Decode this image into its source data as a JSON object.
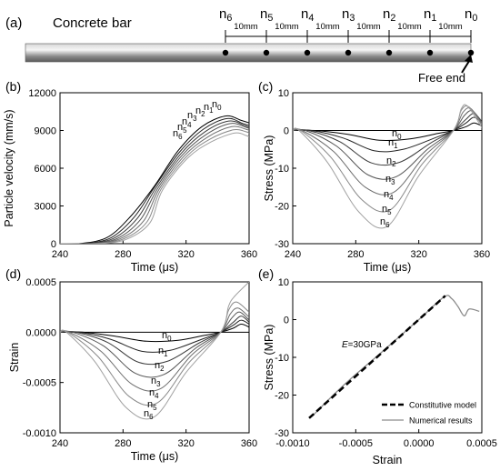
{
  "figure": {
    "panel_a": {
      "tag": "(a)",
      "title": "Concrete bar",
      "node_labels": [
        "n6",
        "n5",
        "n4",
        "n3",
        "n2",
        "n1",
        "n0"
      ],
      "spacing_label": "10mm",
      "free_end_label": "Free end"
    }
  },
  "chart_data": [
    {
      "panel": "(b)",
      "type": "line",
      "xlabel": "Time (μs)",
      "ylabel": "Particle velocity (mm/s)",
      "xlim": [
        240,
        360
      ],
      "ylim": [
        0,
        12000
      ],
      "xticks": [
        240,
        280,
        320,
        360
      ],
      "yticks": [
        0,
        3000,
        6000,
        9000,
        12000
      ],
      "series_labels": [
        "n0",
        "n1",
        "n2",
        "n3",
        "n4",
        "n5",
        "n6"
      ],
      "series": [
        {
          "name": "n0",
          "values": [
            [
              252,
              0
            ],
            [
              270,
              500
            ],
            [
              285,
              2200
            ],
            [
              300,
              4600
            ],
            [
              315,
              7400
            ],
            [
              330,
              9300
            ],
            [
              345,
              10150
            ],
            [
              355,
              9800
            ],
            [
              360,
              9600
            ]
          ]
        },
        {
          "name": "n1",
          "values": [
            [
              254,
              0
            ],
            [
              272,
              450
            ],
            [
              287,
              2100
            ],
            [
              300,
              4500
            ],
            [
              316,
              7300
            ],
            [
              331,
              9100
            ],
            [
              346,
              9950
            ],
            [
              356,
              9550
            ],
            [
              360,
              9400
            ]
          ]
        },
        {
          "name": "n2",
          "values": [
            [
              256,
              0
            ],
            [
              274,
              420
            ],
            [
              289,
              2000
            ],
            [
              301,
              4450
            ],
            [
              317,
              7200
            ],
            [
              332,
              8900
            ],
            [
              347,
              9750
            ],
            [
              357,
              9400
            ],
            [
              360,
              9250
            ]
          ]
        },
        {
          "name": "n3",
          "values": [
            [
              258,
              0
            ],
            [
              276,
              400
            ],
            [
              291,
              1900
            ],
            [
              302,
              4400
            ],
            [
              318,
              7100
            ],
            [
              333,
              8700
            ],
            [
              348,
              9550
            ],
            [
              358,
              9250
            ],
            [
              360,
              9150
            ]
          ]
        },
        {
          "name": "n4",
          "values": [
            [
              260,
              0
            ],
            [
              278,
              380
            ],
            [
              293,
              1800
            ],
            [
              303,
              4350
            ],
            [
              319,
              7000
            ],
            [
              334,
              8500
            ],
            [
              349,
              9300
            ],
            [
              358,
              9100
            ],
            [
              360,
              9000
            ]
          ]
        },
        {
          "name": "n5",
          "values": [
            [
              262,
              0
            ],
            [
              280,
              360
            ],
            [
              295,
              1700
            ],
            [
              304,
              4300
            ],
            [
              320,
              6900
            ],
            [
              335,
              8300
            ],
            [
              350,
              9050
            ],
            [
              358,
              8900
            ],
            [
              360,
              8800
            ]
          ]
        },
        {
          "name": "n6",
          "values": [
            [
              264,
              0
            ],
            [
              282,
              340
            ],
            [
              297,
              1650
            ],
            [
              305,
              4250
            ],
            [
              321,
              6800
            ],
            [
              336,
              8100
            ],
            [
              351,
              8800
            ],
            [
              358,
              8600
            ],
            [
              360,
              8500
            ]
          ]
        }
      ]
    },
    {
      "panel": "(c)",
      "type": "line",
      "xlabel": "Time (μs)",
      "ylabel": "Stress (MPa)",
      "xlim": [
        240,
        360
      ],
      "ylim": [
        -30,
        10
      ],
      "xticks": [
        240,
        280,
        320,
        360
      ],
      "yticks": [
        -30,
        -20,
        -10,
        0,
        10
      ],
      "series_labels": [
        "n0",
        "n1",
        "n2",
        "n3",
        "n4",
        "n5",
        "n6"
      ],
      "series": [
        {
          "name": "n0",
          "values": [
            [
              254,
              0
            ],
            [
              275,
              -1.0
            ],
            [
              295,
              -2.6
            ],
            [
              315,
              -2.2
            ],
            [
              332,
              -0.8
            ],
            [
              342,
              0
            ],
            [
              350,
              1.0
            ],
            [
              355,
              2.0
            ],
            [
              360,
              1.2
            ]
          ]
        },
        {
          "name": "n1",
          "values": [
            [
              252,
              0
            ],
            [
              272,
              -2.0
            ],
            [
              292,
              -5.4
            ],
            [
              310,
              -5.0
            ],
            [
              330,
              -2.0
            ],
            [
              342,
              0
            ],
            [
              350,
              2.0
            ],
            [
              355,
              3.5
            ],
            [
              360,
              2.0
            ]
          ]
        },
        {
          "name": "n2",
          "values": [
            [
              250,
              0
            ],
            [
              270,
              -3.0
            ],
            [
              290,
              -8.6
            ],
            [
              308,
              -8.4
            ],
            [
              328,
              -3.2
            ],
            [
              342,
              0
            ],
            [
              350,
              3.0
            ],
            [
              355,
              4.5
            ],
            [
              360,
              2.4
            ]
          ]
        },
        {
          "name": "n3",
          "values": [
            [
              248,
              0
            ],
            [
              268,
              -4.2
            ],
            [
              288,
              -11.8
            ],
            [
              306,
              -12.2
            ],
            [
              326,
              -4.8
            ],
            [
              342,
              0
            ],
            [
              349,
              4.0
            ],
            [
              354,
              5.2
            ],
            [
              360,
              2.2
            ]
          ]
        },
        {
          "name": "n4",
          "values": [
            [
              246,
              0
            ],
            [
              266,
              -5.6
            ],
            [
              286,
              -15.0
            ],
            [
              304,
              -16.4
            ],
            [
              324,
              -6.6
            ],
            [
              342,
              0
            ],
            [
              348,
              4.8
            ],
            [
              353,
              5.8
            ],
            [
              360,
              1.8
            ]
          ]
        },
        {
          "name": "n5",
          "values": [
            [
              245,
              0
            ],
            [
              264,
              -7.0
            ],
            [
              284,
              -18.4
            ],
            [
              302,
              -21.0
            ],
            [
              322,
              -9.0
            ],
            [
              342,
              0
            ],
            [
              347,
              5.4
            ],
            [
              352,
              6.2
            ],
            [
              360,
              1.4
            ]
          ]
        },
        {
          "name": "n6",
          "values": [
            [
              244,
              0
            ],
            [
              262,
              -8.4
            ],
            [
              282,
              -21.6
            ],
            [
              300,
              -25.4
            ],
            [
              320,
              -12.0
            ],
            [
              342,
              0
            ],
            [
              347,
              5.8
            ],
            [
              351,
              6.4
            ],
            [
              360,
              0.8
            ]
          ]
        }
      ]
    },
    {
      "panel": "(d)",
      "type": "line",
      "xlabel": "Time (μs)",
      "ylabel": "Strain",
      "xlim": [
        240,
        360
      ],
      "ylim": [
        -0.001,
        0.0005
      ],
      "xticks": [
        240,
        280,
        320,
        360
      ],
      "ytick_labels": [
        "-0.0010",
        "-0.0005",
        "0.0000",
        "0.0005"
      ],
      "yticks": [
        -0.001,
        -0.0005,
        0.0,
        0.0005
      ],
      "series_labels": [
        "n0",
        "n1",
        "n2",
        "n3",
        "n4",
        "n5",
        "n6"
      ],
      "series": [
        {
          "name": "n0",
          "values": [
            [
              254,
              0
            ],
            [
              275,
              -4e-05
            ],
            [
              295,
              -9e-05
            ],
            [
              315,
              -8e-05
            ],
            [
              332,
              -3e-05
            ],
            [
              342,
              0
            ],
            [
              350,
              4e-05
            ],
            [
              355,
              8e-05
            ],
            [
              360,
              5e-05
            ]
          ]
        },
        {
          "name": "n1",
          "values": [
            [
              252,
              0
            ],
            [
              272,
              -7e-05
            ],
            [
              292,
              -0.00019
            ],
            [
              310,
              -0.00018
            ],
            [
              330,
              -7e-05
            ],
            [
              342,
              0
            ],
            [
              350,
              7e-05
            ],
            [
              355,
              0.00012
            ],
            [
              360,
              8e-05
            ]
          ]
        },
        {
          "name": "n2",
          "values": [
            [
              250,
              0
            ],
            [
              270,
              -0.0001
            ],
            [
              290,
              -0.0003
            ],
            [
              308,
              -0.00029
            ],
            [
              328,
              -0.00011
            ],
            [
              342,
              0
            ],
            [
              350,
              0.0001
            ],
            [
              355,
              0.00016
            ],
            [
              360,
              0.0001
            ]
          ]
        },
        {
          "name": "n3",
          "values": [
            [
              248,
              0
            ],
            [
              268,
              -0.00014
            ],
            [
              288,
              -0.00041
            ],
            [
              306,
              -0.00042
            ],
            [
              326,
              -0.00016
            ],
            [
              342,
              0
            ],
            [
              349,
              0.00014
            ],
            [
              354,
              0.0002
            ],
            [
              360,
              0.00012
            ]
          ]
        },
        {
          "name": "n4",
          "values": [
            [
              246,
              0
            ],
            [
              266,
              -0.00019
            ],
            [
              286,
              -0.00052
            ],
            [
              304,
              -0.00056
            ],
            [
              324,
              -0.00022
            ],
            [
              342,
              0
            ],
            [
              348,
              0.00018
            ],
            [
              353,
              0.00024
            ],
            [
              360,
              0.00015
            ]
          ]
        },
        {
          "name": "n5",
          "values": [
            [
              245,
              0
            ],
            [
              264,
              -0.00024
            ],
            [
              284,
              -0.00064
            ],
            [
              302,
              -0.0007
            ],
            [
              322,
              -0.0003
            ],
            [
              342,
              0
            ],
            [
              347,
              0.00022
            ],
            [
              352,
              0.0003
            ],
            [
              360,
              0.0002
            ]
          ]
        },
        {
          "name": "n6",
          "values": [
            [
              244,
              0
            ],
            [
              262,
              -0.00029
            ],
            [
              282,
              -0.00075
            ],
            [
              300,
              -0.00084
            ],
            [
              320,
              -0.0004
            ],
            [
              342,
              0
            ],
            [
              347,
              0.00026
            ],
            [
              351,
              0.00036
            ],
            [
              360,
              0.0005
            ]
          ]
        }
      ]
    },
    {
      "panel": "(e)",
      "type": "line",
      "xlabel": "Strain",
      "ylabel": "Stress (MPa)",
      "xlim": [
        -0.001,
        0.0005
      ],
      "ylim": [
        -30,
        10
      ],
      "xtick_labels": [
        "-0.0010",
        "-0.0005",
        "0.0000",
        "0.0005"
      ],
      "xticks": [
        -0.001,
        -0.0005,
        0.0,
        0.0005
      ],
      "yticks": [
        -30,
        -20,
        -10,
        0,
        10
      ],
      "annotation": "E=30GPa",
      "legend": [
        {
          "label": "Constitutive model",
          "style": "dashed",
          "color": "#000000"
        },
        {
          "label": "Numerical results",
          "style": "solid",
          "color": "#8c8c8c"
        }
      ],
      "series": [
        {
          "name": "Constitutive model",
          "values": [
            [
              -0.00087,
              -26.1
            ],
            [
              0.00021,
              6.3
            ]
          ]
        },
        {
          "name": "Numerical results",
          "values": [
            [
              -0.00084,
              -25.4
            ],
            [
              -0.0006,
              -17.5
            ],
            [
              -0.0003,
              -8.8
            ],
            [
              0.0,
              0.0
            ],
            [
              0.0002,
              6.0
            ],
            [
              0.00026,
              5.6
            ],
            [
              0.00031,
              3.5
            ],
            [
              0.00036,
              1.0
            ],
            [
              0.0004,
              2.8
            ],
            [
              0.00048,
              2.2
            ]
          ]
        }
      ]
    }
  ],
  "colors": {
    "dark_series": "#000000",
    "light_series": "#9a9a9a"
  }
}
